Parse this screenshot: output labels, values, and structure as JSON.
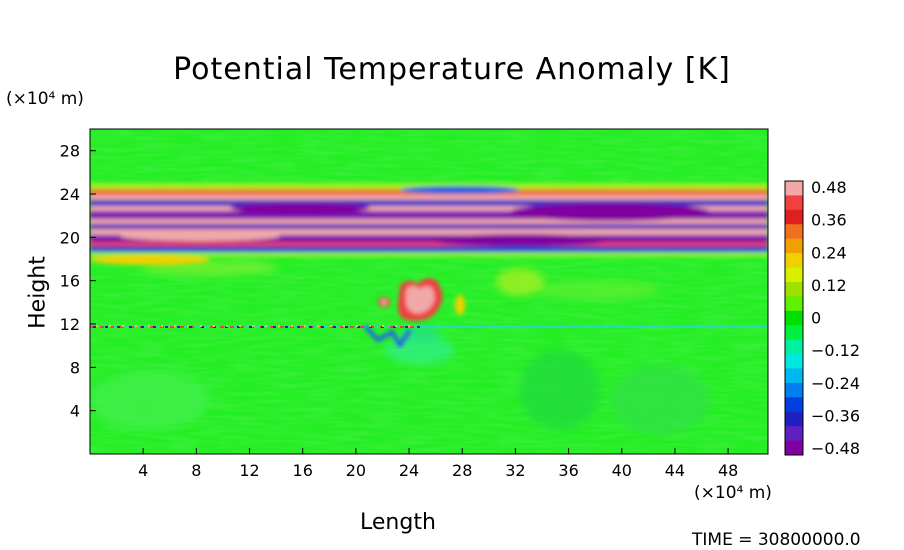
{
  "chart_data": {
    "type": "heatmap",
    "title": "Potential Temperature Anomaly [K]",
    "xlabel": "Length",
    "ylabel": "Height",
    "x_unit": "(×10⁴ m)",
    "y_unit": "(×10⁴ m)",
    "xlim": [
      0,
      51
    ],
    "ylim": [
      0,
      30
    ],
    "x_ticks": [
      "4",
      "8",
      "12",
      "16",
      "20",
      "24",
      "28",
      "32",
      "36",
      "40",
      "44",
      "48"
    ],
    "y_ticks": [
      "4",
      "8",
      "12",
      "16",
      "20",
      "24",
      "28"
    ],
    "x_tick_values": [
      4,
      8,
      12,
      16,
      20,
      24,
      28,
      32,
      36,
      40,
      44,
      48
    ],
    "y_tick_values": [
      4,
      8,
      12,
      16,
      20,
      24,
      28
    ],
    "colorbar": {
      "labels": [
        "0.48",
        "0.36",
        "0.24",
        "0.12",
        "0",
        "−0.12",
        "−0.24",
        "−0.36",
        "−0.48"
      ],
      "label_values": [
        0.48,
        0.36,
        0.24,
        0.12,
        0,
        -0.12,
        -0.24,
        -0.36,
        -0.48
      ],
      "colors": [
        "#f0a8a8",
        "#f04040",
        "#e02020",
        "#f07020",
        "#f0a000",
        "#f0d000",
        "#d8f000",
        "#a0e000",
        "#60f000",
        "#00e000",
        "#00f040",
        "#00f0a0",
        "#00e8e0",
        "#00b8f0",
        "#0080f0",
        "#0040e0",
        "#2020c0",
        "#6020c0",
        "#8000a0"
      ]
    },
    "features": [
      {
        "name": "stratospheric band",
        "y_range": [
          19,
          24
        ],
        "anomaly": "alternating ±0.48"
      },
      {
        "name": "warm plume",
        "x_range": [
          22,
          26.5
        ],
        "y_range": [
          12.5,
          16
        ],
        "anomaly": "+0.48"
      },
      {
        "name": "tropopause line",
        "y": 11.5,
        "anomaly": "mixed ±0.36"
      }
    ]
  },
  "timestamp": "TIME = 30800000.0"
}
